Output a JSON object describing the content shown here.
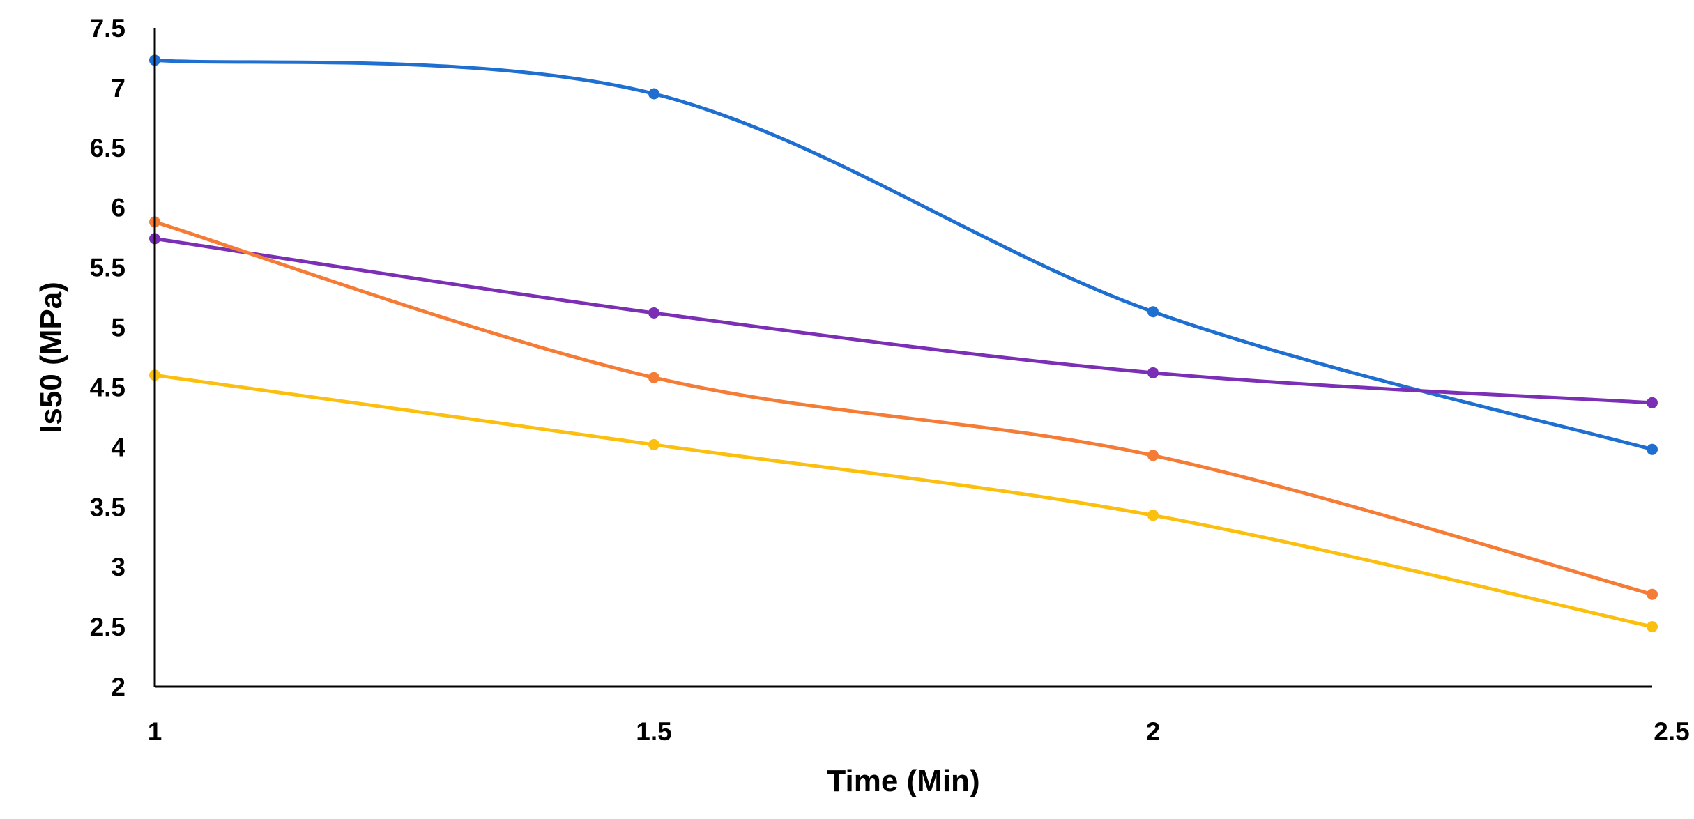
{
  "chart_data": {
    "type": "line",
    "title": "",
    "xlabel": "Time (Min)",
    "ylabel": "Is50 (MPa)",
    "x": [
      1,
      1.5,
      2,
      2.5
    ],
    "x_tick_labels": [
      "1",
      "1.5",
      "2",
      "2.5"
    ],
    "y_tick_labels": [
      "2",
      "2.5",
      "3",
      "3.5",
      "4",
      "4.5",
      "5",
      "5.5",
      "6",
      "6.5",
      "7",
      "7.5"
    ],
    "xlim": [
      1,
      2.5
    ],
    "ylim": [
      2,
      7.5
    ],
    "grid": false,
    "legend": "none",
    "series": [
      {
        "color": "#1F6FD1",
        "values": [
          7.23,
          6.95,
          5.13,
          3.98
        ]
      },
      {
        "color": "#7B2FB5",
        "values": [
          5.74,
          5.12,
          4.62,
          4.37
        ]
      },
      {
        "color": "#F57C36",
        "values": [
          5.88,
          4.58,
          3.93,
          2.77
        ]
      },
      {
        "color": "#FBBF0F",
        "values": [
          4.6,
          4.02,
          3.43,
          2.5
        ]
      }
    ]
  }
}
